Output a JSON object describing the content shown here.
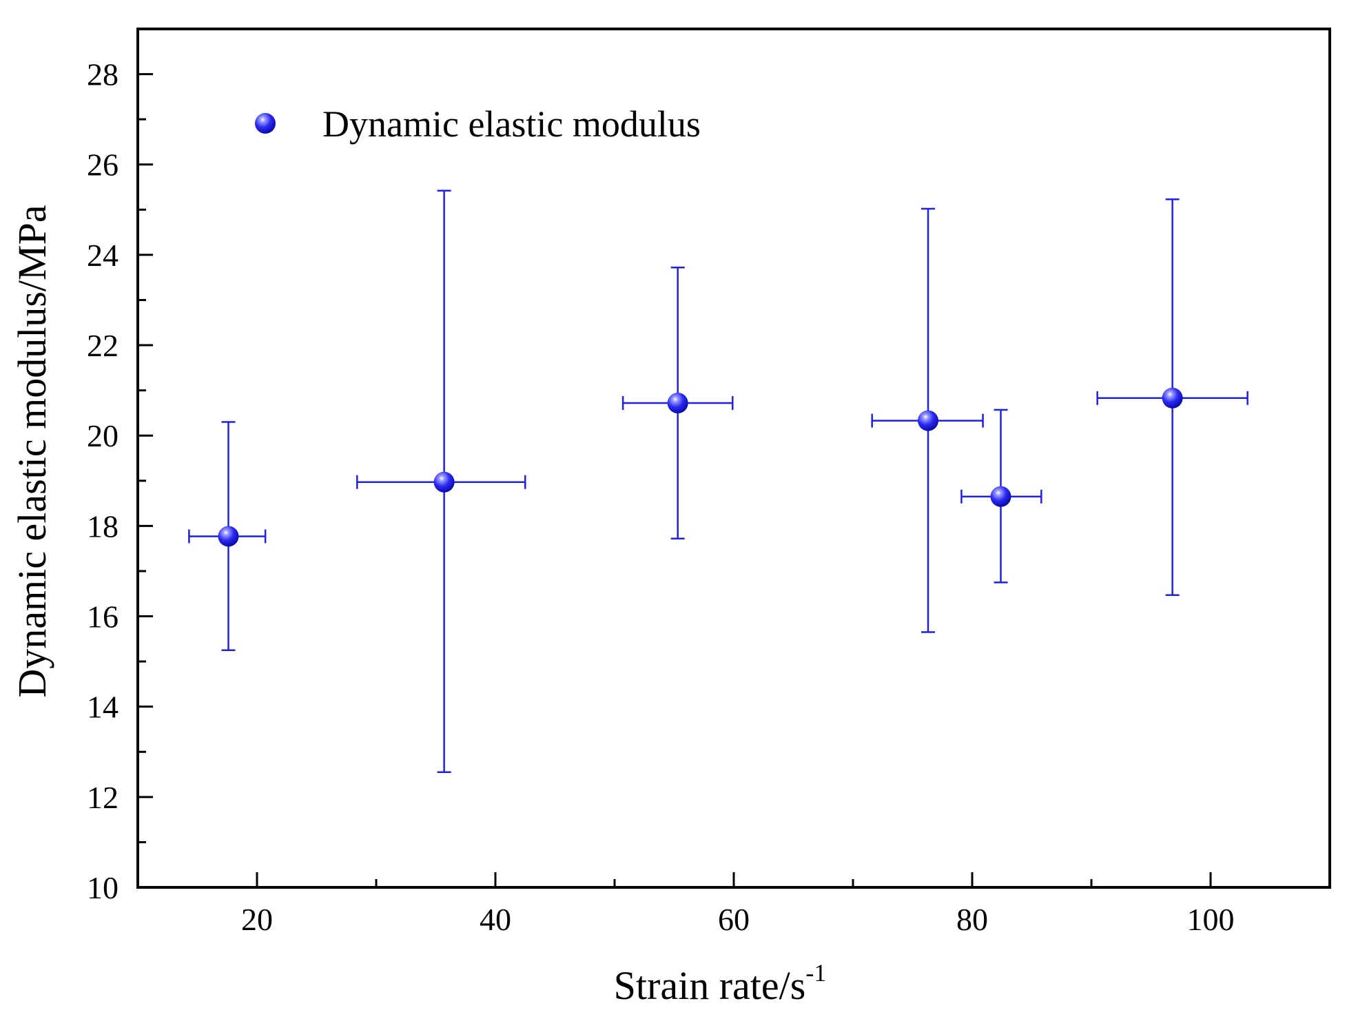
{
  "chart_data": {
    "type": "scatter",
    "title": "",
    "xlabel": "Strain rate/s",
    "xlabel_superscript": "-1",
    "ylabel": "Dynamic elastic modulus/MPa",
    "xlim": [
      10,
      110
    ],
    "ylim": [
      10,
      29
    ],
    "x_ticks": [
      "20",
      "40",
      "60",
      "80",
      "100"
    ],
    "y_ticks": [
      "10",
      "12",
      "14",
      "16",
      "18",
      "20",
      "22",
      "24",
      "26",
      "28"
    ],
    "grid": false,
    "legend_position": "top-left",
    "series": [
      {
        "name": "Dynamic elastic modulus",
        "color": "#1f1fe6",
        "marker": "sphere",
        "points": [
          {
            "x": 17.6,
            "y": 17.77,
            "xerr_low": 14.3,
            "xerr_high": 20.7,
            "yerr_low": 15.25,
            "yerr_high": 20.3
          },
          {
            "x": 35.7,
            "y": 18.97,
            "xerr_low": 28.4,
            "xerr_high": 42.5,
            "yerr_low": 12.55,
            "yerr_high": 25.42
          },
          {
            "x": 55.3,
            "y": 20.72,
            "xerr_low": 50.7,
            "xerr_high": 59.9,
            "yerr_low": 17.72,
            "yerr_high": 23.72
          },
          {
            "x": 76.3,
            "y": 20.33,
            "xerr_low": 71.6,
            "xerr_high": 80.9,
            "yerr_low": 15.65,
            "yerr_high": 25.02
          },
          {
            "x": 82.4,
            "y": 18.65,
            "xerr_low": 79.1,
            "xerr_high": 85.8,
            "yerr_low": 16.75,
            "yerr_high": 20.57
          },
          {
            "x": 96.8,
            "y": 20.83,
            "xerr_low": 90.5,
            "xerr_high": 103.1,
            "yerr_low": 16.47,
            "yerr_high": 25.23
          }
        ]
      }
    ]
  }
}
